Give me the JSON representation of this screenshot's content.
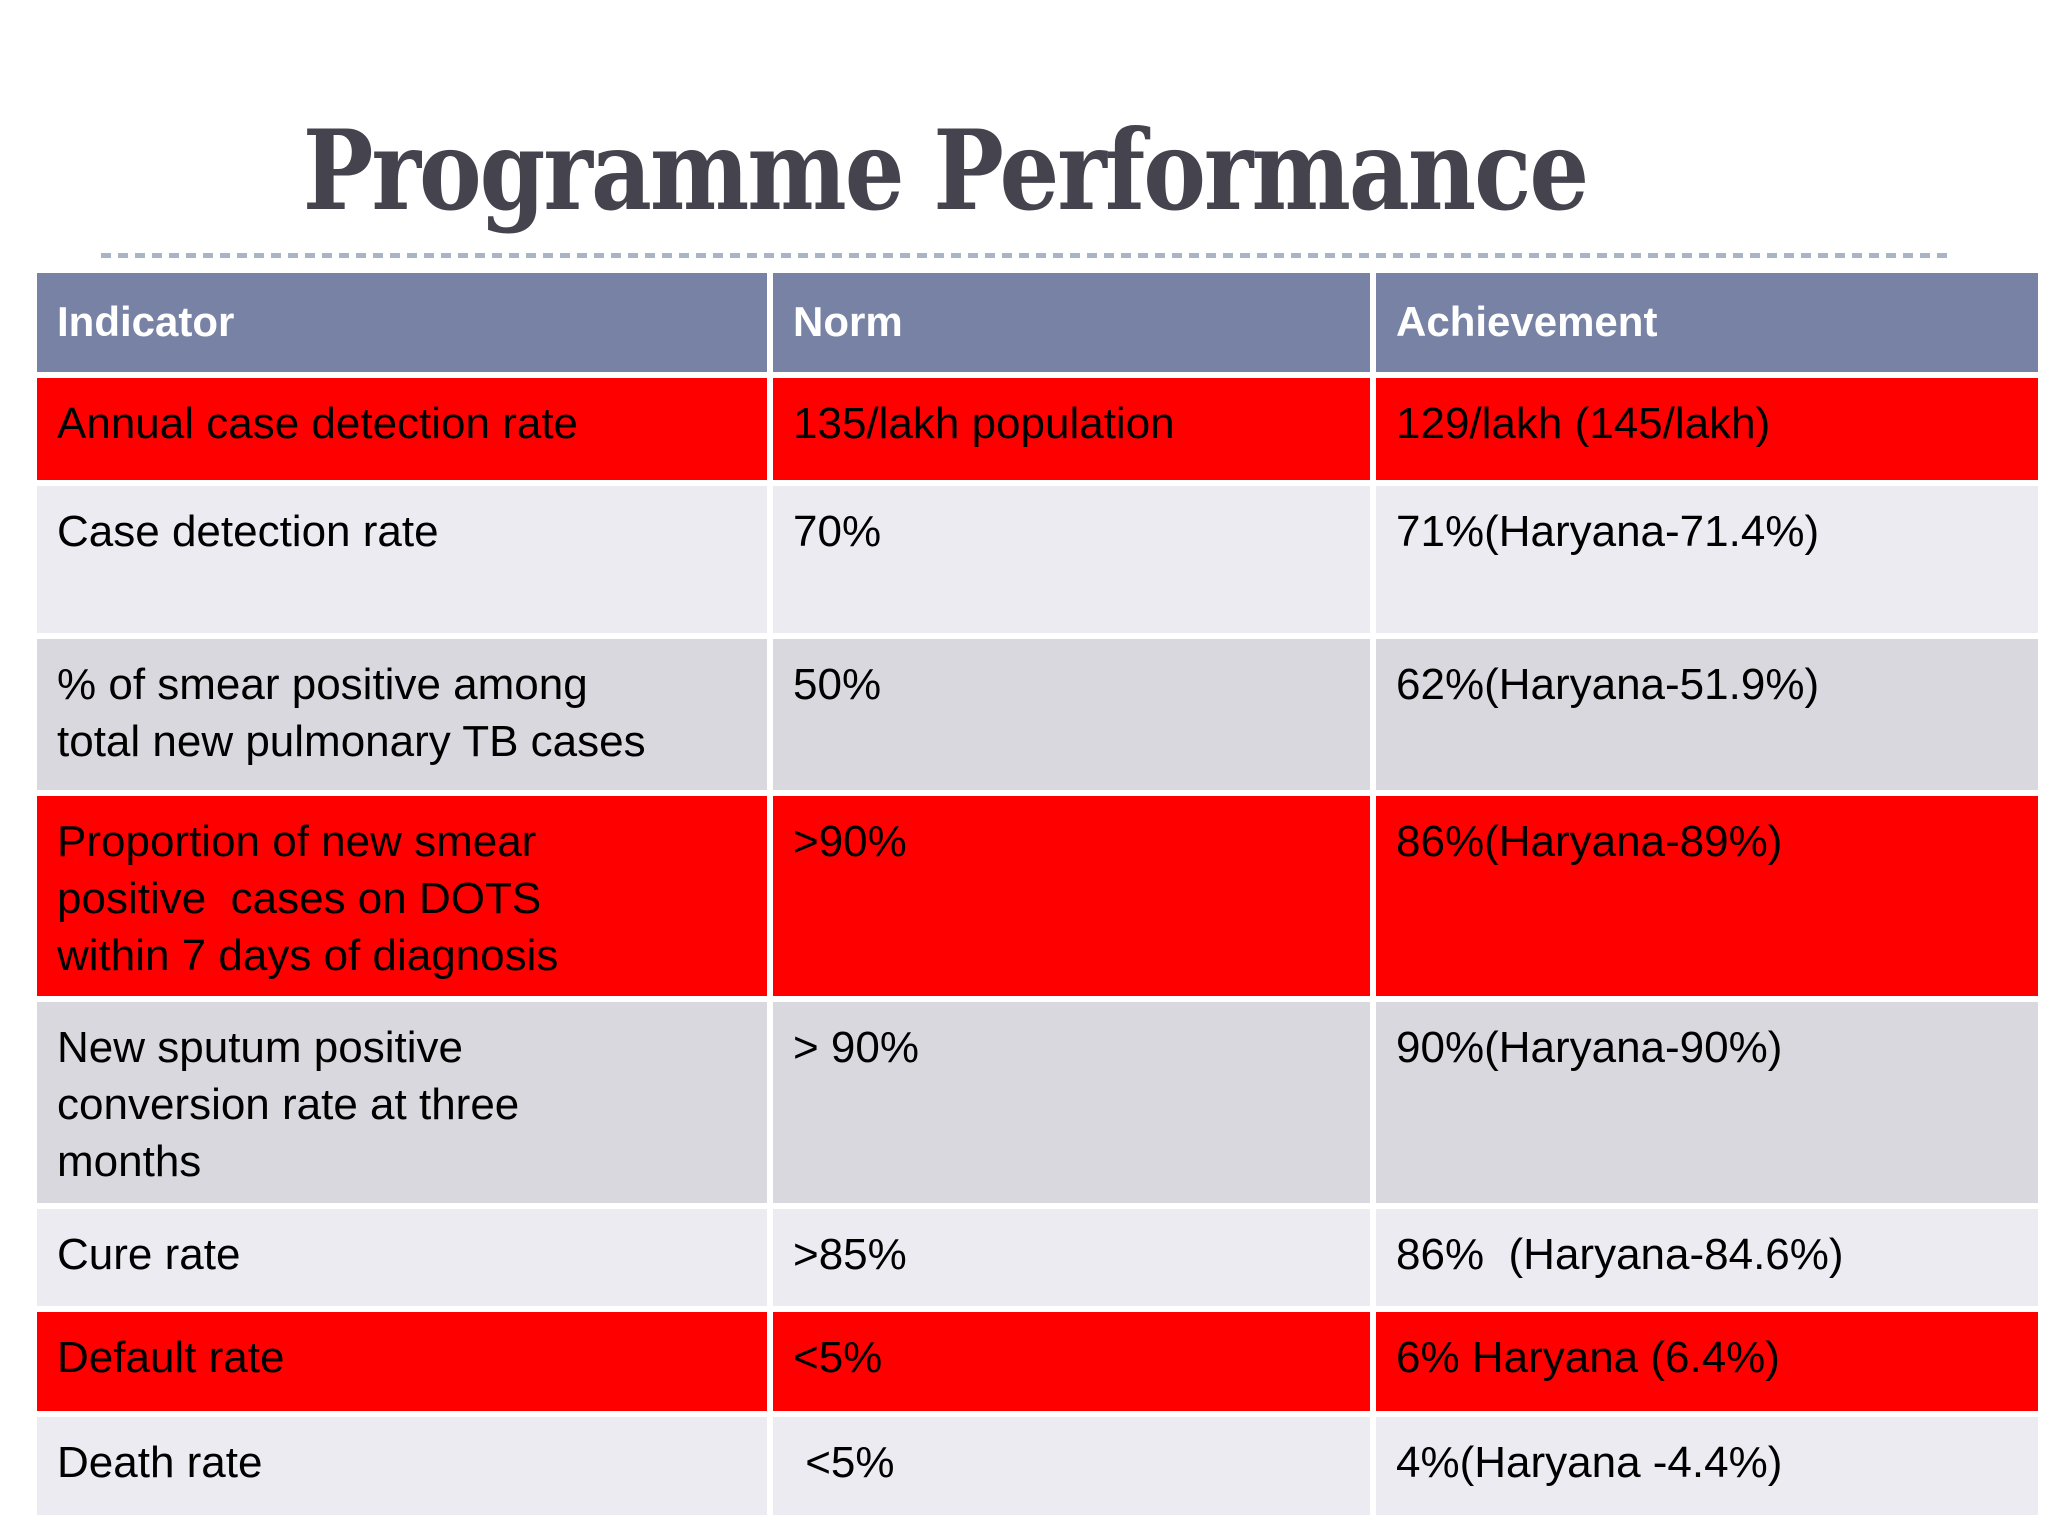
{
  "title": "Programme Performance",
  "colors": {
    "red": "#ff0000",
    "light": "#ebebf1",
    "dark": "#d8d8de",
    "header_bg": "#7882a5",
    "header_text": "#ffffff",
    "title_text": "#45444e",
    "divider": "#a9b5c6",
    "cell_text": "#000000"
  },
  "table": {
    "headers": [
      "Indicator",
      "Norm",
      "Achievement"
    ],
    "rows": [
      {
        "indicator": "Annual case detection rate",
        "norm": "135/lakh population",
        "achievement": "129/lakh (145/lakh)",
        "shade": "red"
      },
      {
        "indicator": "Case detection rate",
        "norm": "70%",
        "achievement": "71%(Haryana-71.4%)",
        "shade": "light"
      },
      {
        "indicator": "% of smear positive among\ntotal new pulmonary TB cases",
        "norm": "50%",
        "achievement": "62%(Haryana-51.9%)",
        "shade": "dark"
      },
      {
        "indicator": "Proportion of new smear\npositive  cases on DOTS\nwithin 7 days of diagnosis",
        "norm": ">90%",
        "achievement": "86%(Haryana-89%)",
        "shade": "red"
      },
      {
        "indicator": "New sputum positive\nconversion rate at three\nmonths",
        "norm": "> 90%",
        "achievement": "90%(Haryana-90%)",
        "shade": "dark"
      },
      {
        "indicator": "Cure rate",
        "norm": ">85%",
        "achievement": "86%  (Haryana-84.6%)",
        "shade": "light"
      },
      {
        "indicator": "Default rate",
        "norm": "<5%",
        "achievement": "6% Haryana (6.4%)",
        "shade": "red"
      },
      {
        "indicator": "Death rate",
        "norm": " <5%",
        "achievement": "4%(Haryana -4.4%)",
        "shade": "light"
      }
    ]
  }
}
